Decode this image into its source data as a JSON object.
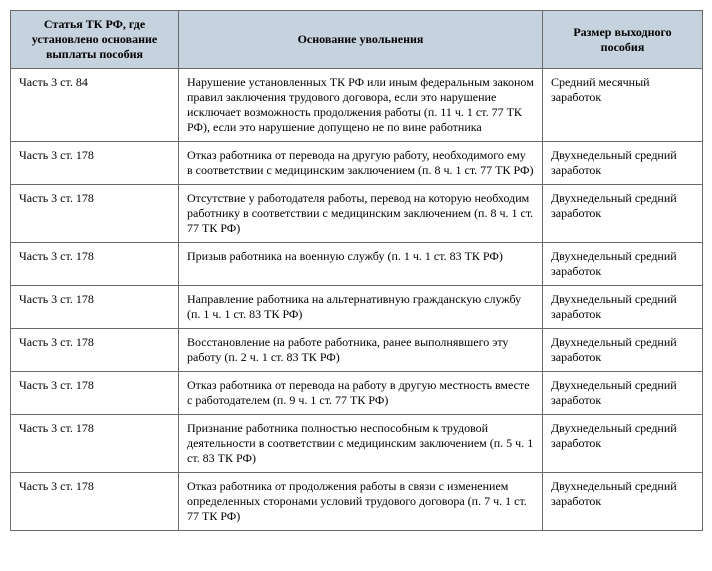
{
  "table": {
    "columns": [
      "Статья ТК РФ, где установлено основание выплаты пособия",
      "Основание увольнения",
      "Размер выходного пособия"
    ],
    "rows": [
      {
        "article": "Часть 3 ст. 84",
        "reason": "Нарушение установленных ТК РФ или иным федеральным законом правил заключения трудового договора, если это нарушение исключает возможность продолжения работы (п. 11 ч. 1 ст. 77 ТК РФ), если это нарушение допущено не по вине работника",
        "amount": "Средний месячный заработок"
      },
      {
        "article": "Часть 3 ст. 178",
        "reason": "Отказ работника от перевода на другую работу, необходимого ему в соответствии с медицинским заключением (п. 8 ч. 1 ст. 77 ТК РФ)",
        "amount": "Двухнедельный средний заработок"
      },
      {
        "article": "Часть 3 ст. 178",
        "reason": "Отсутствие у работодателя работы, перевод на которую необходим работнику в соответствии с медицинским заключением (п. 8 ч. 1 ст. 77 ТК РФ)",
        "amount": "Двухнедельный средний заработок"
      },
      {
        "article": "Часть 3 ст. 178",
        "reason": "Призыв работника на военную службу (п. 1 ч. 1 ст. 83 ТК РФ)",
        "amount": "Двухнедельный средний заработок"
      },
      {
        "article": "Часть 3 ст. 178",
        "reason": "Направление работника на альтернативную гражданскую службу (п. 1 ч. 1 ст. 83 ТК РФ)",
        "amount": "Двухнедельный средний заработок"
      },
      {
        "article": "Часть 3 ст. 178",
        "reason": "Восстановление на работе работника, ранее выполнявшего эту работу (п. 2 ч. 1 ст. 83 ТК РФ)",
        "amount": "Двухнедельный средний заработок"
      },
      {
        "article": "Часть 3 ст. 178",
        "reason": "Отказ работника от перевода на работу в другую местность вместе с работодателем (п. 9 ч. 1 ст. 77 ТК РФ)",
        "amount": "Двухнедельный средний заработок"
      },
      {
        "article": "Часть 3 ст. 178",
        "reason": "Признание работника полностью неспособным к трудовой деятельности в соответствии с медицинским заключением (п. 5 ч. 1 ст. 83 ТК РФ)",
        "amount": "Двухнедельный средний заработок"
      },
      {
        "article": "Часть 3 ст. 178",
        "reason": "Отказ работника от продолжения работы в связи с изменением определенных сторонами условий трудового договора (п. 7 ч. 1 ст. 77 ТК РФ)",
        "amount": "Двухнедельный средний заработок"
      }
    ]
  }
}
